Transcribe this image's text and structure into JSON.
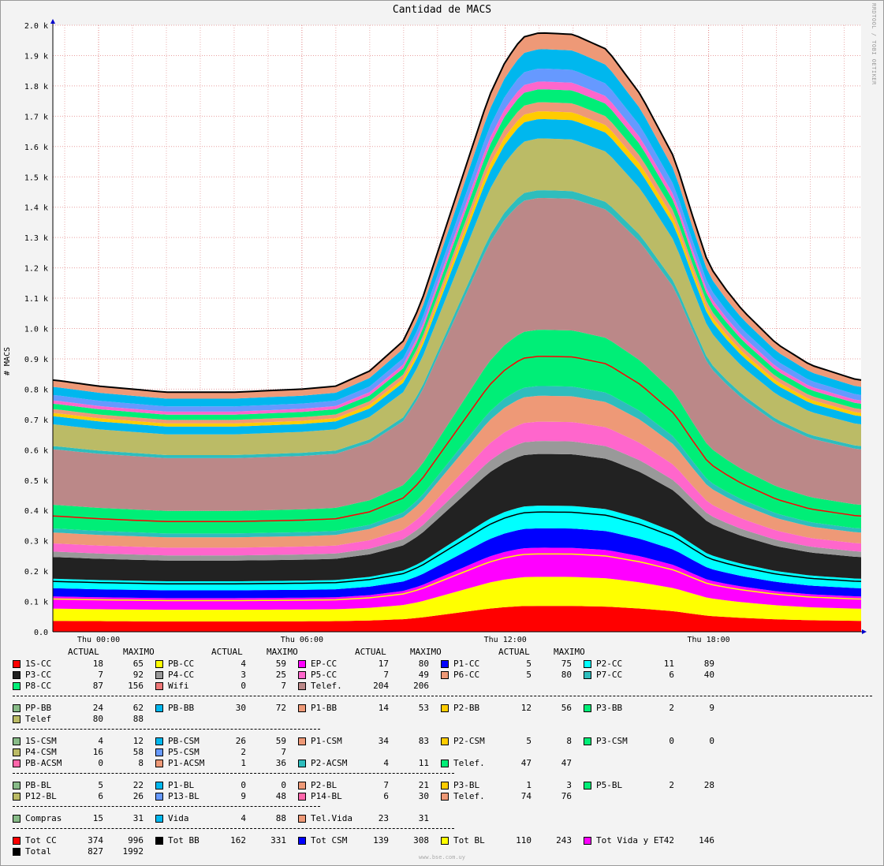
{
  "title": "Cantidad de MACS",
  "side_label": "RRDTOOL / TOBI OETIKER",
  "footer": "www.bse.com.uy",
  "legend_headers": [
    "ACTUAL",
    "MAXIMO"
  ],
  "chart_data": {
    "type": "area",
    "title": "Cantidad de MACS",
    "ylabel": "# MACS",
    "ylim": [
      0,
      2000
    ],
    "yticks": [
      "0.0",
      "0.1 k",
      "0.2 k",
      "0.3 k",
      "0.4 k",
      "0.5 k",
      "0.6 k",
      "0.7 k",
      "0.8 k",
      "0.9 k",
      "1.0 k",
      "1.1 k",
      "1.2 k",
      "1.3 k",
      "1.4 k",
      "1.5 k",
      "1.6 k",
      "1.7 k",
      "1.8 k",
      "1.9 k",
      "2.0 k"
    ],
    "xticks": [
      {
        "hour": 0,
        "label": "Thu 00:00"
      },
      {
        "hour": 6,
        "label": "Thu 06:00"
      },
      {
        "hour": 12,
        "label": "Thu 12:00"
      },
      {
        "hour": 18,
        "label": "Thu 18:00"
      }
    ],
    "xlim_hours": [
      -1.35,
      22.5
    ],
    "grid": true,
    "total_curve": {
      "hours": [
        -1.3,
        0,
        2,
        4,
        6,
        7,
        8,
        9,
        9.5,
        10,
        10.5,
        11,
        11.5,
        12,
        12.5,
        13,
        14,
        15,
        16,
        17,
        17.5,
        18,
        18.5,
        19,
        20,
        21,
        22.4
      ],
      "values": [
        830,
        810,
        790,
        790,
        800,
        810,
        860,
        960,
        1080,
        1250,
        1420,
        1590,
        1760,
        1880,
        1960,
        1975,
        1970,
        1920,
        1770,
        1560,
        1380,
        1210,
        1130,
        1060,
        950,
        880,
        830
      ]
    },
    "stack_colors": [
      "#ff0000",
      "#ffff00",
      "#ff00ff",
      "#0000ff",
      "#00ffff",
      "#222222",
      "#999999",
      "#ff66cc",
      "#ee9977",
      "#2ebdbd",
      "#00ee77",
      "#bb8888",
      "#2ebdbd",
      "#bbbb66",
      "#00b7ee",
      "#ffcc00",
      "#ee9977",
      "#00ee77",
      "#ff66cc",
      "#6699ff",
      "#00b7ee",
      "#ee9977"
    ],
    "stack_weights": [
      40,
      45,
      45,
      30,
      35,
      80,
      20,
      30,
      40,
      15,
      87,
      204,
      12,
      80,
      30,
      12,
      14,
      20,
      12,
      20,
      30,
      25
    ],
    "overlay_lines": [
      {
        "name": "Tot CC",
        "color": "#ff0000"
      },
      {
        "name": "Tot BB",
        "color": "#000000"
      },
      {
        "name": "Tot CSM",
        "color": "#0000ff"
      },
      {
        "name": "Tot BL",
        "color": "#ffff00"
      }
    ],
    "legend": [
      {
        "rows": [
          [
            {
              "name": "1S-CC",
              "color": "#ff0000",
              "actual": "18",
              "max": "65"
            },
            {
              "name": "PB-CC",
              "color": "#ffff00",
              "actual": "4",
              "max": "59"
            },
            {
              "name": "EP-CC",
              "color": "#ff00ff",
              "actual": "17",
              "max": "80"
            },
            {
              "name": "P1-CC",
              "color": "#0000ff",
              "actual": "5",
              "max": "75"
            },
            {
              "name": "P2-CC",
              "color": "#00ffff",
              "actual": "11",
              "max": "89"
            }
          ],
          [
            {
              "name": "P3-CC",
              "color": "#222222",
              "actual": "7",
              "max": "92"
            },
            {
              "name": "P4-CC",
              "color": "#999999",
              "actual": "3",
              "max": "25"
            },
            {
              "name": "P5-CC",
              "color": "#ff66cc",
              "actual": "7",
              "max": "49"
            },
            {
              "name": "P6-CC",
              "color": "#ee9977",
              "actual": "5",
              "max": "80"
            },
            {
              "name": "P7-CC",
              "color": "#2ebdbd",
              "actual": "6",
              "max": "40"
            }
          ],
          [
            {
              "name": "P8-CC",
              "color": "#00ee77",
              "actual": "87",
              "max": "156"
            },
            {
              "name": "Wifi",
              "color": "#ee7777",
              "actual": "0",
              "max": "7"
            },
            {
              "name": "Telef.",
              "color": "#bb8888",
              "actual": "204",
              "max": "206"
            }
          ]
        ],
        "sep": 1090
      },
      {
        "rows": [
          [
            {
              "name": "PP-BB",
              "color": "#88bb88",
              "actual": "24",
              "max": "62"
            },
            {
              "name": "PB-BB",
              "color": "#00b7ee",
              "actual": "30",
              "max": "72"
            },
            {
              "name": "P1-BB",
              "color": "#ee9977",
              "actual": "14",
              "max": "53"
            },
            {
              "name": "P2-BB",
              "color": "#ffcc00",
              "actual": "12",
              "max": "56"
            },
            {
              "name": "P3-BB",
              "color": "#00ee77",
              "actual": "2",
              "max": "9"
            }
          ],
          [
            {
              "name": "Telef",
              "color": "#bbbb66",
              "actual": "80",
              "max": "88"
            }
          ]
        ],
        "sep": 390
      },
      {
        "rows": [
          [
            {
              "name": "1S-CSM",
              "color": "#88bb88",
              "actual": "4",
              "max": "12"
            },
            {
              "name": "PB-CSM",
              "color": "#00b7ee",
              "actual": "26",
              "max": "59"
            },
            {
              "name": "P1-CSM",
              "color": "#ee9977",
              "actual": "34",
              "max": "83"
            },
            {
              "name": "P2-CSM",
              "color": "#ffcc00",
              "actual": "5",
              "max": "8"
            },
            {
              "name": "P3-CSM",
              "color": "#00ee77",
              "actual": "0",
              "max": "0"
            }
          ],
          [
            {
              "name": "P4-CSM",
              "color": "#bbbb66",
              "actual": "16",
              "max": "58"
            },
            {
              "name": "P5-CSM",
              "color": "#6699ff",
              "actual": "2",
              "max": "7"
            }
          ],
          [
            {
              "name": "PB-ACSM",
              "color": "#ff66aa",
              "actual": "0",
              "max": "8"
            },
            {
              "name": "P1-ACSM",
              "color": "#ee9977",
              "actual": "1",
              "max": "36"
            },
            {
              "name": "P2-ACSM",
              "color": "#2ebdbd",
              "actual": "4",
              "max": "11"
            },
            {
              "name": "Telef.",
              "color": "#00ee77",
              "actual": "47",
              "max": "47"
            }
          ]
        ],
        "sep": 560
      },
      {
        "rows": [
          [
            {
              "name": "PB-BL",
              "color": "#88bb88",
              "actual": "5",
              "max": "22"
            },
            {
              "name": "P1-BL",
              "color": "#00b7ee",
              "actual": "0",
              "max": "0"
            },
            {
              "name": "P2-BL",
              "color": "#ee9977",
              "actual": "7",
              "max": "21"
            },
            {
              "name": "P3-BL",
              "color": "#ffcc00",
              "actual": "1",
              "max": "3"
            },
            {
              "name": "P5-BL",
              "color": "#00ee77",
              "actual": "2",
              "max": "28"
            }
          ],
          [
            {
              "name": "P12-BL",
              "color": "#bbbb66",
              "actual": "6",
              "max": "26"
            },
            {
              "name": "P13-BL",
              "color": "#6699ff",
              "actual": "9",
              "max": "48"
            },
            {
              "name": "P14-BL",
              "color": "#ff66aa",
              "actual": "6",
              "max": "30"
            },
            {
              "name": "Telef.",
              "color": "#ee9977",
              "actual": "74",
              "max": "76"
            }
          ]
        ],
        "sep": 390
      },
      {
        "rows": [
          [
            {
              "name": "Compras",
              "color": "#88bb88",
              "actual": "15",
              "max": "31"
            },
            {
              "name": "Vida",
              "color": "#00b7ee",
              "actual": "4",
              "max": "88"
            },
            {
              "name": "Tel.Vida",
              "color": "#ee9977",
              "actual": "23",
              "max": "31"
            }
          ]
        ],
        "sep": 560
      },
      {
        "rows": [
          [
            {
              "name": "Tot CC",
              "color": "#ff0000",
              "actual": "374",
              "max": "996"
            },
            {
              "name": "Tot BB",
              "color": "#000000",
              "actual": "162",
              "max": "331"
            },
            {
              "name": "Tot CSM",
              "color": "#0000ff",
              "actual": "139",
              "max": "308"
            },
            {
              "name": "Tot BL",
              "color": "#ffff00",
              "actual": "110",
              "max": "243"
            },
            {
              "name": "Tot Vida y ET",
              "color": "#ff00ff",
              "actual": "42",
              "max": "146"
            }
          ],
          [
            {
              "name": "Total",
              "color": "#000000",
              "actual": "827",
              "max": "1992"
            }
          ]
        ],
        "sep": 0
      }
    ]
  }
}
